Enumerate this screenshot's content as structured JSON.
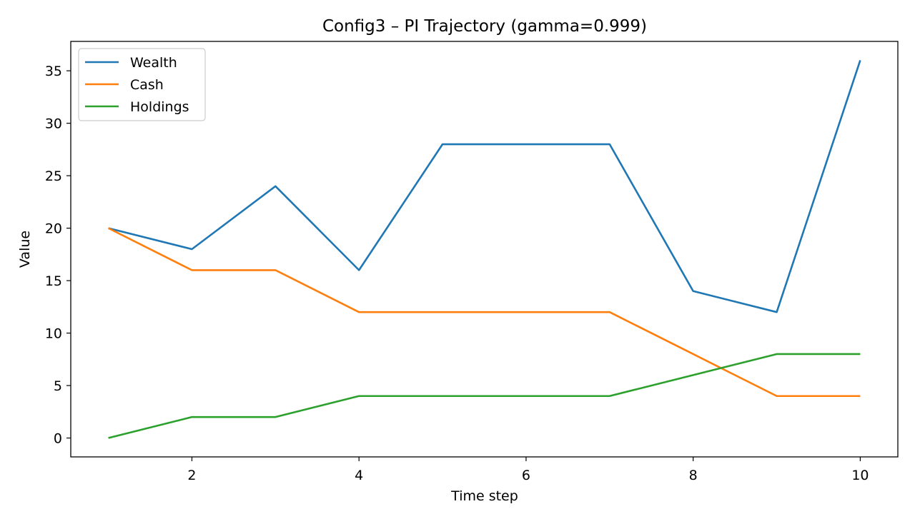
{
  "chart_data": {
    "type": "line",
    "title": "Config3 – PI Trajectory (gamma=0.999)",
    "xlabel": "Time step",
    "ylabel": "Value",
    "x": [
      1,
      2,
      3,
      4,
      5,
      6,
      7,
      8,
      9,
      10
    ],
    "xlim": [
      0.55,
      10.45
    ],
    "ylim": [
      -1.8,
      37.8
    ],
    "xticks": [
      2,
      4,
      6,
      8,
      10
    ],
    "yticks": [
      0,
      5,
      10,
      15,
      20,
      25,
      30,
      35
    ],
    "grid": false,
    "legend_position": "top-left",
    "series": [
      {
        "name": "Wealth",
        "color": "#1f77b4",
        "values": [
          20,
          18,
          24,
          16,
          28,
          28,
          28,
          14,
          12,
          36
        ]
      },
      {
        "name": "Cash",
        "color": "#ff7f0e",
        "values": [
          20,
          16,
          16,
          12,
          12,
          12,
          12,
          8,
          4,
          4
        ]
      },
      {
        "name": "Holdings",
        "color": "#2ca02c",
        "values": [
          0,
          2,
          2,
          4,
          4,
          4,
          4,
          6,
          8,
          8
        ]
      }
    ]
  }
}
